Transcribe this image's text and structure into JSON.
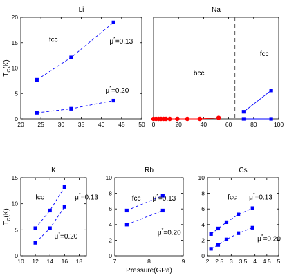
{
  "chart_data": [
    {
      "id": "Li",
      "type": "scatter",
      "title": "Li",
      "xlim": [
        20,
        50
      ],
      "ylim": [
        0,
        20
      ],
      "xticks": [
        20,
        25,
        30,
        35,
        40,
        45,
        50
      ],
      "yticks": [
        0,
        5,
        10,
        15,
        20
      ],
      "ylabel": "T_C(K)",
      "xlabel": "",
      "series": [
        {
          "values": [
            [
              24,
              7.7
            ],
            [
              32.5,
              12.1
            ],
            [
              43,
              19
            ]
          ],
          "style": "dashed",
          "color": "#0000ff",
          "marker": "square"
        },
        {
          "values": [
            [
              24,
              1.2
            ],
            [
              32.5,
              2.0
            ],
            [
              43,
              3.6
            ]
          ],
          "style": "dashed",
          "color": "#0000ff",
          "marker": "square"
        }
      ],
      "annotations": [
        {
          "text": "fcc",
          "x": 27,
          "y": 15.2
        },
        {
          "text": "μ*=0.13",
          "x": 42,
          "y": 14.8
        },
        {
          "text": "μ*=0.20",
          "x": 41,
          "y": 5.2
        }
      ]
    },
    {
      "id": "Na",
      "type": "scatter",
      "title": "Na",
      "xlim": [
        0,
        100
      ],
      "ylim": [
        0,
        1
      ],
      "xticks": [
        0,
        20,
        40,
        60,
        80,
        100
      ],
      "yticks": [],
      "ylabel": "",
      "xlabel": "",
      "vline": 65,
      "series": [
        {
          "values": [
            [
              0,
              0
            ],
            [
              2,
              0
            ],
            [
              4,
              0
            ],
            [
              6,
              0
            ],
            [
              8,
              0
            ],
            [
              10,
              0
            ],
            [
              13,
              0
            ],
            [
              19,
              0
            ],
            [
              27,
              0
            ],
            [
              37,
              0
            ],
            [
              52,
              0.01
            ]
          ],
          "style": "solid",
          "color": "#ff0000",
          "marker": "circle"
        },
        {
          "values": [
            [
              72,
              0.07
            ],
            [
              94,
              0.28
            ]
          ],
          "style": "solid",
          "color": "#0000ff",
          "marker": "square"
        },
        {
          "values": [
            [
              72,
              0
            ],
            [
              94,
              0
            ]
          ],
          "style": "solid",
          "color": "#0000ff",
          "marker": "square"
        }
      ],
      "annotations": [
        {
          "text": "bcc",
          "x": 32,
          "y": 0.43
        },
        {
          "text": "fcc",
          "x": 85,
          "y": 0.62
        }
      ]
    },
    {
      "id": "K",
      "type": "scatter",
      "title": "K",
      "xlim": [
        10,
        19
      ],
      "ylim": [
        0,
        15
      ],
      "xticks": [
        10,
        12,
        14,
        16,
        18
      ],
      "yticks": [
        0,
        5,
        10,
        15
      ],
      "ylabel": "T_C(K)",
      "xlabel": "",
      "series": [
        {
          "values": [
            [
              12,
              5.3
            ],
            [
              14,
              8.7
            ],
            [
              16,
              13.2
            ]
          ],
          "style": "dashed",
          "color": "#0000ff",
          "marker": "square"
        },
        {
          "values": [
            [
              12,
              2.5
            ],
            [
              14,
              5.3
            ],
            [
              16,
              9.4
            ]
          ],
          "style": "dashed",
          "color": "#0000ff",
          "marker": "square"
        }
      ],
      "annotations": [
        {
          "text": "fcc",
          "x": 12,
          "y": 10.8
        },
        {
          "text": "μ*=0.13",
          "x": 17.4,
          "y": 10.8
        },
        {
          "text": "μ*=0.20",
          "x": 14.6,
          "y": 3.3
        }
      ]
    },
    {
      "id": "Rb",
      "type": "scatter",
      "title": "Rb",
      "xlim": [
        7,
        9
      ],
      "ylim": [
        0,
        10
      ],
      "xticks": [
        7,
        8,
        9
      ],
      "yticks": [
        0,
        2,
        4,
        6,
        8,
        10
      ],
      "ylabel": "",
      "xlabel": "Pressure(GPa)",
      "series": [
        {
          "values": [
            [
              7.35,
              5.8
            ],
            [
              8.4,
              7.7
            ]
          ],
          "style": "dashed",
          "color": "#0000ff",
          "marker": "square"
        },
        {
          "values": [
            [
              7.35,
              4.0
            ],
            [
              8.4,
              5.8
            ]
          ],
          "style": "dashed",
          "color": "#0000ff",
          "marker": "square"
        }
      ],
      "annotations": [
        {
          "text": "fcc",
          "x": 7.5,
          "y": 7.1
        },
        {
          "text": "μ*=0.13",
          "x": 8.1,
          "y": 7.1
        },
        {
          "text": "μ*=0.20",
          "x": 8.25,
          "y": 2.7
        }
      ]
    },
    {
      "id": "Cs",
      "type": "scatter",
      "title": "Cs",
      "xlim": [
        2,
        5
      ],
      "ylim": [
        0,
        10
      ],
      "xticks": [
        2,
        2.5,
        3,
        3.5,
        4,
        4.5,
        5
      ],
      "yticks": [
        0,
        2,
        4,
        6,
        8,
        10
      ],
      "ylabel": "",
      "xlabel": "",
      "series": [
        {
          "values": [
            [
              2.15,
              2.8
            ],
            [
              2.45,
              3.5
            ],
            [
              2.8,
              4.3
            ],
            [
              3.3,
              5.3
            ],
            [
              3.9,
              6.1
            ]
          ],
          "style": "dashed",
          "color": "#0000ff",
          "marker": "square"
        },
        {
          "values": [
            [
              2.15,
              0.9
            ],
            [
              2.45,
              1.4
            ],
            [
              2.8,
              2.1
            ],
            [
              3.3,
              2.9
            ],
            [
              3.9,
              3.6
            ]
          ],
          "style": "dashed",
          "color": "#0000ff",
          "marker": "square"
        }
      ],
      "annotations": [
        {
          "text": "fcc",
          "x": 2.85,
          "y": 7.2
        },
        {
          "text": "μ*=0.13",
          "x": 3.75,
          "y": 7.2
        },
        {
          "text": "μ*=0.20",
          "x": 4.1,
          "y": 1.9
        }
      ]
    }
  ]
}
